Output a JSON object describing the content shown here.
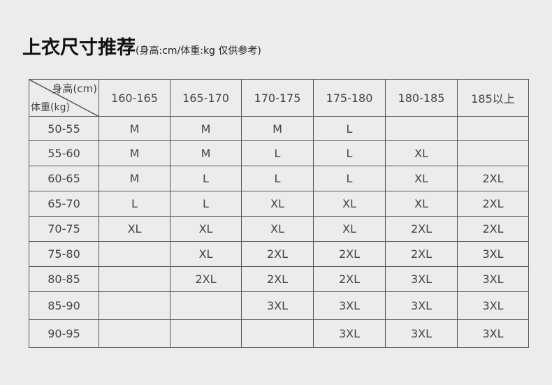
{
  "title": {
    "main": "上衣尺寸推荐",
    "sub": "(身高:cm/体重:kg 仅供参考)"
  },
  "table": {
    "corner_height": "身高(cm)",
    "corner_weight": "体重(kg)",
    "columns": [
      "160-165",
      "165-170",
      "170-175",
      "175-180",
      "180-185",
      "185以上"
    ],
    "rows": [
      {
        "weight": "50-55",
        "sizes": [
          "M",
          "M",
          "M",
          "L",
          "",
          ""
        ]
      },
      {
        "weight": "55-60",
        "sizes": [
          "M",
          "M",
          "L",
          "L",
          "XL",
          ""
        ]
      },
      {
        "weight": "60-65",
        "sizes": [
          "M",
          "L",
          "L",
          "L",
          "XL",
          "2XL"
        ]
      },
      {
        "weight": "65-70",
        "sizes": [
          "L",
          "L",
          "XL",
          "XL",
          "XL",
          "2XL"
        ]
      },
      {
        "weight": "70-75",
        "sizes": [
          "XL",
          "XL",
          "XL",
          "XL",
          "2XL",
          "2XL"
        ]
      },
      {
        "weight": "75-80",
        "sizes": [
          "",
          "XL",
          "2XL",
          "2XL",
          "2XL",
          "3XL"
        ]
      },
      {
        "weight": "80-85",
        "sizes": [
          "",
          "2XL",
          "2XL",
          "2XL",
          "3XL",
          "3XL"
        ]
      },
      {
        "weight": "85-90",
        "sizes": [
          "",
          "",
          "3XL",
          "3XL",
          "3XL",
          "3XL"
        ]
      },
      {
        "weight": "90-95",
        "sizes": [
          "",
          "",
          "",
          "3XL",
          "3XL",
          "3XL"
        ]
      }
    ]
  }
}
